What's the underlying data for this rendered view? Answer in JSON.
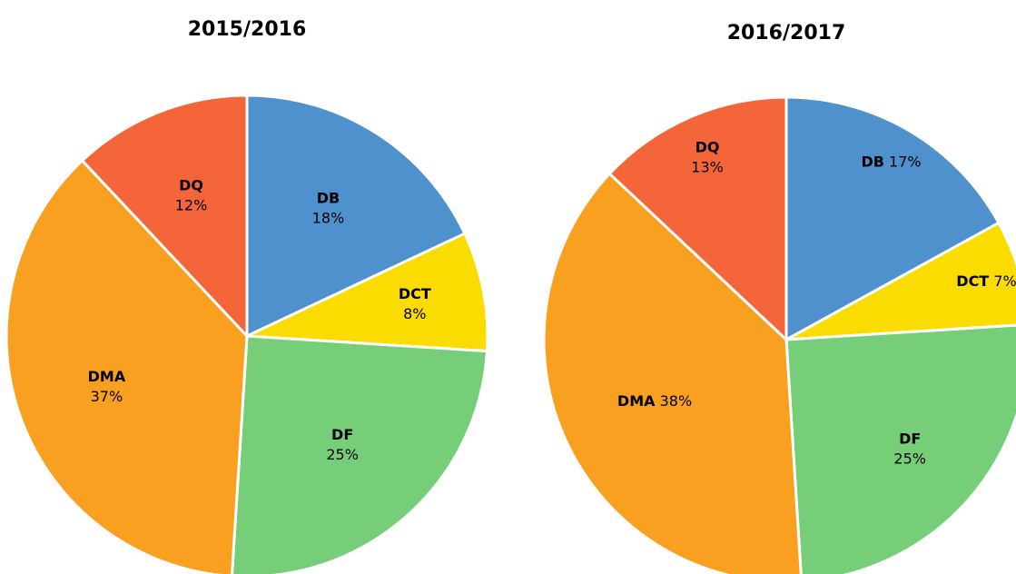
{
  "chart_data": [
    {
      "type": "pie",
      "title": "2015/2016",
      "categories": [
        "DB",
        "DCT",
        "DF",
        "DMA",
        "DQ"
      ],
      "values": [
        18,
        8,
        25,
        37,
        12
      ],
      "value_labels": [
        "18%",
        "8%",
        "25%",
        "37%",
        "12%"
      ],
      "colors": [
        "#4e91cc",
        "#fadc00",
        "#76cf78",
        "#f9a020",
        "#f4663a"
      ]
    },
    {
      "type": "pie",
      "title": "2016/2017",
      "categories": [
        "DB",
        "DCT",
        "DF",
        "DMA",
        "DQ"
      ],
      "values": [
        17,
        7,
        25,
        38,
        13
      ],
      "value_labels": [
        "17%",
        "7%",
        "25%",
        "38%",
        "13%"
      ],
      "colors": [
        "#4e91cc",
        "#fadc00",
        "#76cf78",
        "#f9a020",
        "#f4663a"
      ]
    }
  ]
}
